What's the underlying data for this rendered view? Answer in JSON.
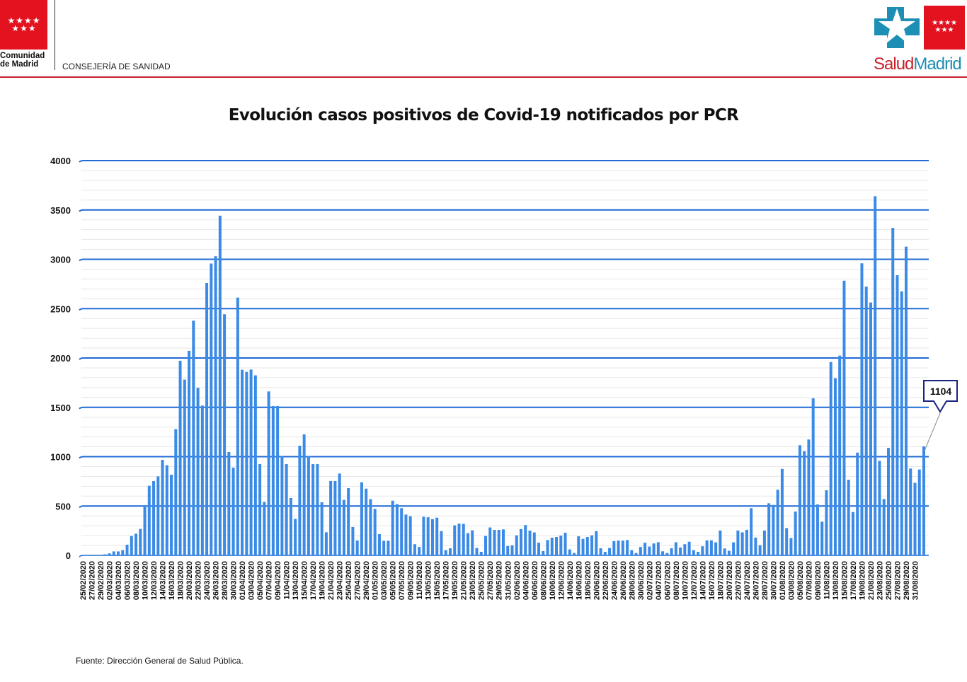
{
  "header": {
    "org_line1": "Comunidad",
    "org_line2": "de Madrid",
    "department": "CONSEJERÍA DE SANIDAD",
    "brand_left": "Salud",
    "brand_right": "Madrid",
    "colors": {
      "red": "#e3121f",
      "blue": "#1d8fb5"
    }
  },
  "footer": {
    "source": "Fuente: Dirección General de Salud Pública."
  },
  "chart_data": {
    "type": "bar",
    "title": "Evolución casos positivos de Covid-19 notificados por PCR",
    "xlabel": "",
    "ylabel": "",
    "ylim": [
      0,
      4000
    ],
    "yticks": [
      0,
      500,
      1000,
      1500,
      2000,
      2500,
      3000,
      3500,
      4000
    ],
    "grid": true,
    "bar_color": "#3a8ae6",
    "grid_color": "#1f6ad4",
    "x_tick_labels": [
      "25/02/2020",
      "27/02/2020",
      "29/02/2020",
      "02/03/2020",
      "04/03/2020",
      "06/03/2020",
      "08/03/2020",
      "10/03/2020",
      "12/03/2020",
      "14/03/2020",
      "16/03/2020",
      "18/03/2020",
      "20/03/2020",
      "22/03/2020",
      "24/03/2020",
      "26/03/2020",
      "28/03/2020",
      "30/03/2020",
      "01/04/2020",
      "03/04/2020",
      "05/04/2020",
      "07/04/2020",
      "09/04/2020",
      "11/04/2020",
      "13/04/2020",
      "15/04/2020",
      "17/04/2020",
      "19/04/2020",
      "21/04/2020",
      "23/04/2020",
      "25/04/2020",
      "27/04/2020",
      "29/04/2020",
      "01/05/2020",
      "03/05/2020",
      "05/05/2020",
      "07/05/2020",
      "09/05/2020",
      "11/05/2020",
      "13/05/2020",
      "15/05/2020",
      "17/05/2020",
      "19/05/2020",
      "21/05/2020",
      "23/05/2020",
      "25/05/2020",
      "27/05/2020",
      "29/05/2020",
      "31/05/2020",
      "02/06/2020",
      "04/06/2020",
      "06/06/2020",
      "08/06/2020",
      "10/06/2020",
      "12/06/2020",
      "14/06/2020",
      "16/06/2020",
      "18/06/2020",
      "20/06/2020",
      "22/06/2020",
      "24/06/2020",
      "26/06/2020",
      "28/06/2020",
      "30/06/2020",
      "02/07/2020",
      "04/07/2020",
      "06/07/2020",
      "08/07/2020",
      "10/07/2020",
      "12/07/2020",
      "14/07/2020",
      "16/07/2020",
      "18/07/2020",
      "20/07/2020",
      "22/07/2020",
      "24/07/2020",
      "26/07/2020",
      "28/07/2020",
      "30/07/2020",
      "01/08/2020",
      "03/08/2020",
      "05/08/2020",
      "07/08/2020",
      "09/08/2020",
      "11/08/2020",
      "13/08/2020",
      "15/08/2020",
      "17/08/2020",
      "19/08/2020",
      "21/08/2020",
      "23/08/2020",
      "25/08/2020",
      "27/08/2020",
      "29/08/2020",
      "31/08/2020"
    ],
    "values": [
      5,
      5,
      5,
      5,
      5,
      10,
      20,
      40,
      40,
      53,
      108,
      196,
      220,
      268,
      507,
      705,
      753,
      800,
      968,
      913,
      817,
      1279,
      1972,
      1781,
      2072,
      2378,
      1697,
      1518,
      2760,
      2957,
      3031,
      3442,
      2443,
      1047,
      889,
      2612,
      1881,
      1859,
      1883,
      1824,
      925,
      542,
      1661,
      1513,
      1513,
      1004,
      925,
      581,
      370,
      1111,
      1226,
      1004,
      925,
      925,
      538,
      234,
      753,
      753,
      829,
      562,
      681,
      287,
      151,
      741,
      676,
      569,
      471,
      215,
      148,
      148,
      554,
      519,
      478,
      413,
      396,
      113,
      85,
      391,
      386,
      367,
      382,
      246,
      53,
      72,
      304,
      321,
      319,
      225,
      254,
      75,
      36,
      196,
      283,
      258,
      258,
      263,
      94,
      101,
      203,
      266,
      307,
      251,
      232,
      128,
      43,
      155,
      179,
      186,
      200,
      229,
      60,
      24,
      193,
      167,
      186,
      203,
      246,
      72,
      36,
      75,
      145,
      150,
      150,
      155,
      53,
      24,
      85,
      128,
      89,
      121,
      133,
      41,
      24,
      72,
      133,
      80,
      113,
      138,
      53,
      36,
      92,
      152,
      152,
      132,
      252,
      70,
      46,
      132,
      252,
      233,
      259,
      478,
      180,
      103,
      252,
      528,
      511,
      665,
      876,
      276,
      175,
      444,
      1116,
      1056,
      1174,
      1591,
      516,
      341,
      660,
      1959,
      1795,
      2024,
      2783,
      766,
      439,
      1041,
      2959,
      2723,
      2562,
      3639,
      957,
      571,
      1089,
      3318,
      2839,
      2675,
      3128,
      880,
      735,
      870,
      1104
    ],
    "annotation": {
      "text": "1104",
      "target": "last"
    }
  }
}
